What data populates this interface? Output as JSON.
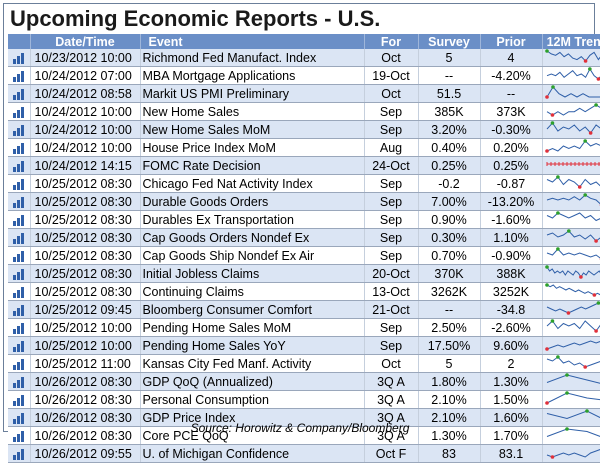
{
  "title": "Upcoming Economic Reports - U.S.",
  "columns": [
    "Date/Time",
    "Event",
    "For",
    "Survey",
    "Prior",
    "12M Trend"
  ],
  "source": "Source: Horowitz & Company/Bloomberg",
  "colors": {
    "header": "#6b8fc7",
    "row_alt": "#dbe5f4",
    "spark_line": "#2f5fa8",
    "spark_high": "#2ca02c",
    "spark_low": "#e0303a",
    "fomc_line": "#e0303a"
  },
  "rows": [
    {
      "date": "10/23/2012 10:00",
      "event": "Richmond Fed Manufact. Index",
      "for": "Oct",
      "survey": "5",
      "prior": "4",
      "trend": [
        9,
        7,
        6,
        8,
        5,
        7,
        4,
        3,
        5,
        2,
        6,
        8,
        3,
        7,
        8
      ]
    },
    {
      "date": "10/24/2012 07:00",
      "event": "MBA Mortgage Applications",
      "for": "19-Oct",
      "survey": "--",
      "prior": "-4.20%",
      "trend": [
        5,
        6,
        5,
        7,
        4,
        6,
        8,
        5,
        6,
        4,
        9,
        5,
        3,
        6,
        5
      ]
    },
    {
      "date": "10/24/2012 08:58",
      "event": "Markit US PMI Preliminary",
      "for": "Oct",
      "survey": "51.5",
      "prior": "--",
      "trend": [
        5,
        8,
        6,
        5,
        6,
        5,
        6,
        5,
        5,
        5,
        5
      ]
    },
    {
      "date": "10/24/2012 10:00",
      "event": "New Home Sales",
      "for": "Sep",
      "survey": "385K",
      "prior": "373K",
      "trend": [
        6,
        5,
        6,
        5,
        6,
        6,
        7,
        6,
        7,
        8,
        7,
        8
      ]
    },
    {
      "date": "10/24/2012 10:00",
      "event": "New Home Sales MoM",
      "for": "Sep",
      "survey": "3.20%",
      "prior": "-0.30%",
      "trend": [
        5,
        8,
        4,
        6,
        5,
        7,
        4,
        6,
        3,
        7,
        5,
        6
      ]
    },
    {
      "date": "10/24/2012 10:00",
      "event": "House Price Index MoM",
      "for": "Aug",
      "survey": "0.40%",
      "prior": "0.20%",
      "trend": [
        4,
        5,
        4,
        6,
        5,
        6,
        5,
        8,
        6,
        7,
        6,
        7
      ]
    },
    {
      "date": "10/24/2012 14:15",
      "event": "FOMC Rate Decision",
      "for": "24-Oct",
      "survey": "0.25%",
      "prior": "0.25%",
      "trend": [
        5,
        5,
        5,
        5,
        5,
        5,
        5,
        5,
        5,
        5,
        5,
        5,
        5,
        5,
        5,
        5
      ]
    },
    {
      "date": "10/25/2012 08:30",
      "event": "Chicago Fed Nat Activity Index",
      "for": "Sep",
      "survey": "-0.2",
      "prior": "-0.87",
      "trend": [
        6,
        5,
        7,
        4,
        6,
        5,
        3,
        6,
        4,
        5,
        3,
        5
      ]
    },
    {
      "date": "10/25/2012 08:30",
      "event": "Durable Goods Orders",
      "for": "Sep",
      "survey": "7.00%",
      "prior": "-13.20%",
      "trend": [
        5,
        6,
        5,
        6,
        5,
        7,
        5,
        8,
        6,
        5,
        2,
        5
      ]
    },
    {
      "date": "10/25/2012 08:30",
      "event": "Durables Ex Transportation",
      "for": "Sep",
      "survey": "0.90%",
      "prior": "-1.60%",
      "trend": [
        6,
        5,
        7,
        6,
        5,
        6,
        7,
        5,
        6,
        4,
        5,
        3
      ]
    },
    {
      "date": "10/25/2012 08:30",
      "event": "Cap Goods Orders Nondef Ex",
      "for": "Sep",
      "survey": "0.30%",
      "prior": "1.10%",
      "trend": [
        6,
        7,
        5,
        6,
        8,
        5,
        6,
        4,
        6,
        3,
        5,
        6
      ]
    },
    {
      "date": "10/25/2012 08:30",
      "event": "Cap Goods Ship Nondef Ex Air",
      "for": "Sep",
      "survey": "0.70%",
      "prior": "-0.90%",
      "trend": [
        6,
        5,
        8,
        5,
        6,
        5,
        6,
        5,
        4,
        5,
        3,
        4
      ]
    },
    {
      "date": "10/25/2012 08:30",
      "event": "Initial Jobless Claims",
      "for": "20-Oct",
      "survey": "370K",
      "prior": "388K",
      "trend": [
        8,
        6,
        7,
        5,
        6,
        5,
        6,
        4,
        6,
        5,
        4,
        6,
        5,
        3,
        5,
        4,
        6,
        5,
        4,
        5,
        6,
        4,
        5,
        6
      ]
    },
    {
      "date": "10/25/2012 08:30",
      "event": "Continuing Claims",
      "for": "13-Oct",
      "survey": "3262K",
      "prior": "3252K",
      "trend": [
        8,
        7,
        8,
        6,
        7,
        6,
        5,
        6,
        5,
        4,
        5,
        4,
        3,
        4,
        3,
        2,
        3,
        2,
        3,
        2
      ]
    },
    {
      "date": "10/25/2012 09:45",
      "event": "Bloomberg Consumer Comfort",
      "for": "21-Oct",
      "survey": "--",
      "prior": "-34.8",
      "trend": [
        6,
        5,
        4,
        5,
        4,
        3,
        4,
        5,
        6,
        5,
        6,
        7,
        8,
        7,
        8
      ]
    },
    {
      "date": "10/25/2012 10:00",
      "event": "Pending Home Sales MoM",
      "for": "Sep",
      "survey": "2.50%",
      "prior": "-2.60%",
      "trend": [
        5,
        7,
        4,
        6,
        5,
        6,
        4,
        7,
        5,
        3,
        6,
        4
      ]
    },
    {
      "date": "10/25/2012 10:00",
      "event": "Pending Home Sales YoY",
      "for": "Sep",
      "survey": "17.50%",
      "prior": "9.60%",
      "trend": [
        4,
        5,
        6,
        5,
        6,
        7,
        6,
        7,
        8,
        7,
        8,
        9
      ]
    },
    {
      "date": "10/25/2012 11:00",
      "event": "Kansas City Fed Manf. Activity",
      "for": "Oct",
      "survey": "5",
      "prior": "2",
      "trend": [
        7,
        6,
        8,
        5,
        6,
        4,
        5,
        3,
        4,
        5,
        6,
        5
      ]
    },
    {
      "date": "10/26/2012 08:30",
      "event": "GDP QoQ (Annualized)",
      "for": "3Q A",
      "survey": "1.80%",
      "prior": "1.30%",
      "trend": [
        5,
        8,
        6,
        4
      ]
    },
    {
      "date": "10/26/2012 08:30",
      "event": "Personal Consumption",
      "for": "3Q A",
      "survey": "2.10%",
      "prior": "1.50%",
      "trend": [
        4,
        8,
        6,
        5
      ]
    },
    {
      "date": "10/26/2012 08:30",
      "event": "GDP Price Index",
      "for": "3Q A",
      "survey": "2.10%",
      "prior": "1.60%",
      "trend": [
        7,
        5,
        8,
        4
      ]
    },
    {
      "date": "10/26/2012 08:30",
      "event": "Core PCE QoQ",
      "for": "3Q A",
      "survey": "1.30%",
      "prior": "1.70%",
      "trend": [
        5,
        8,
        7,
        4
      ]
    },
    {
      "date": "10/26/2012 09:55",
      "event": "U. of Michigan Confidence",
      "for": "Oct F",
      "survey": "83",
      "prior": "83.1",
      "trend": [
        5,
        4,
        5,
        6,
        5,
        6,
        5,
        4,
        6,
        7,
        8,
        9
      ]
    }
  ]
}
